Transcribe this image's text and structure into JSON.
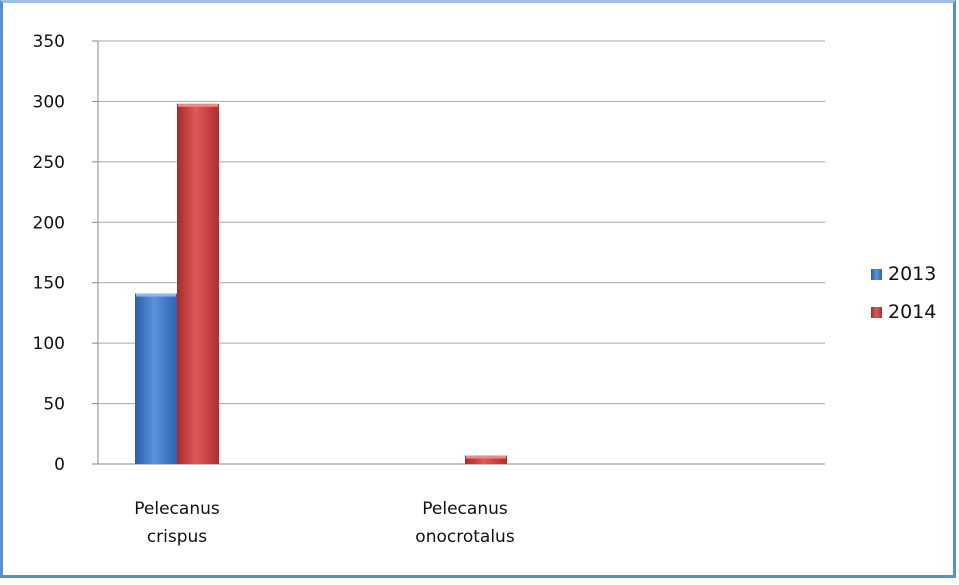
{
  "chart_data": {
    "type": "bar",
    "categories": [
      "Pelecanus crispus",
      "Pelecanus onocrotalus"
    ],
    "category_lines": [
      [
        "Pelecanus",
        "crispus"
      ],
      [
        "Pelecanus",
        "onocrotalus"
      ]
    ],
    "series": [
      {
        "name": "2013",
        "values": [
          141,
          0
        ],
        "color": "#3f78c8"
      },
      {
        "name": "2014",
        "values": [
          298,
          7
        ],
        "color": "#c43c3c"
      }
    ],
    "ylim": [
      0,
      350
    ],
    "yticks": [
      0,
      50,
      100,
      150,
      200,
      250,
      300,
      350
    ],
    "grid": true,
    "legend": "right"
  }
}
